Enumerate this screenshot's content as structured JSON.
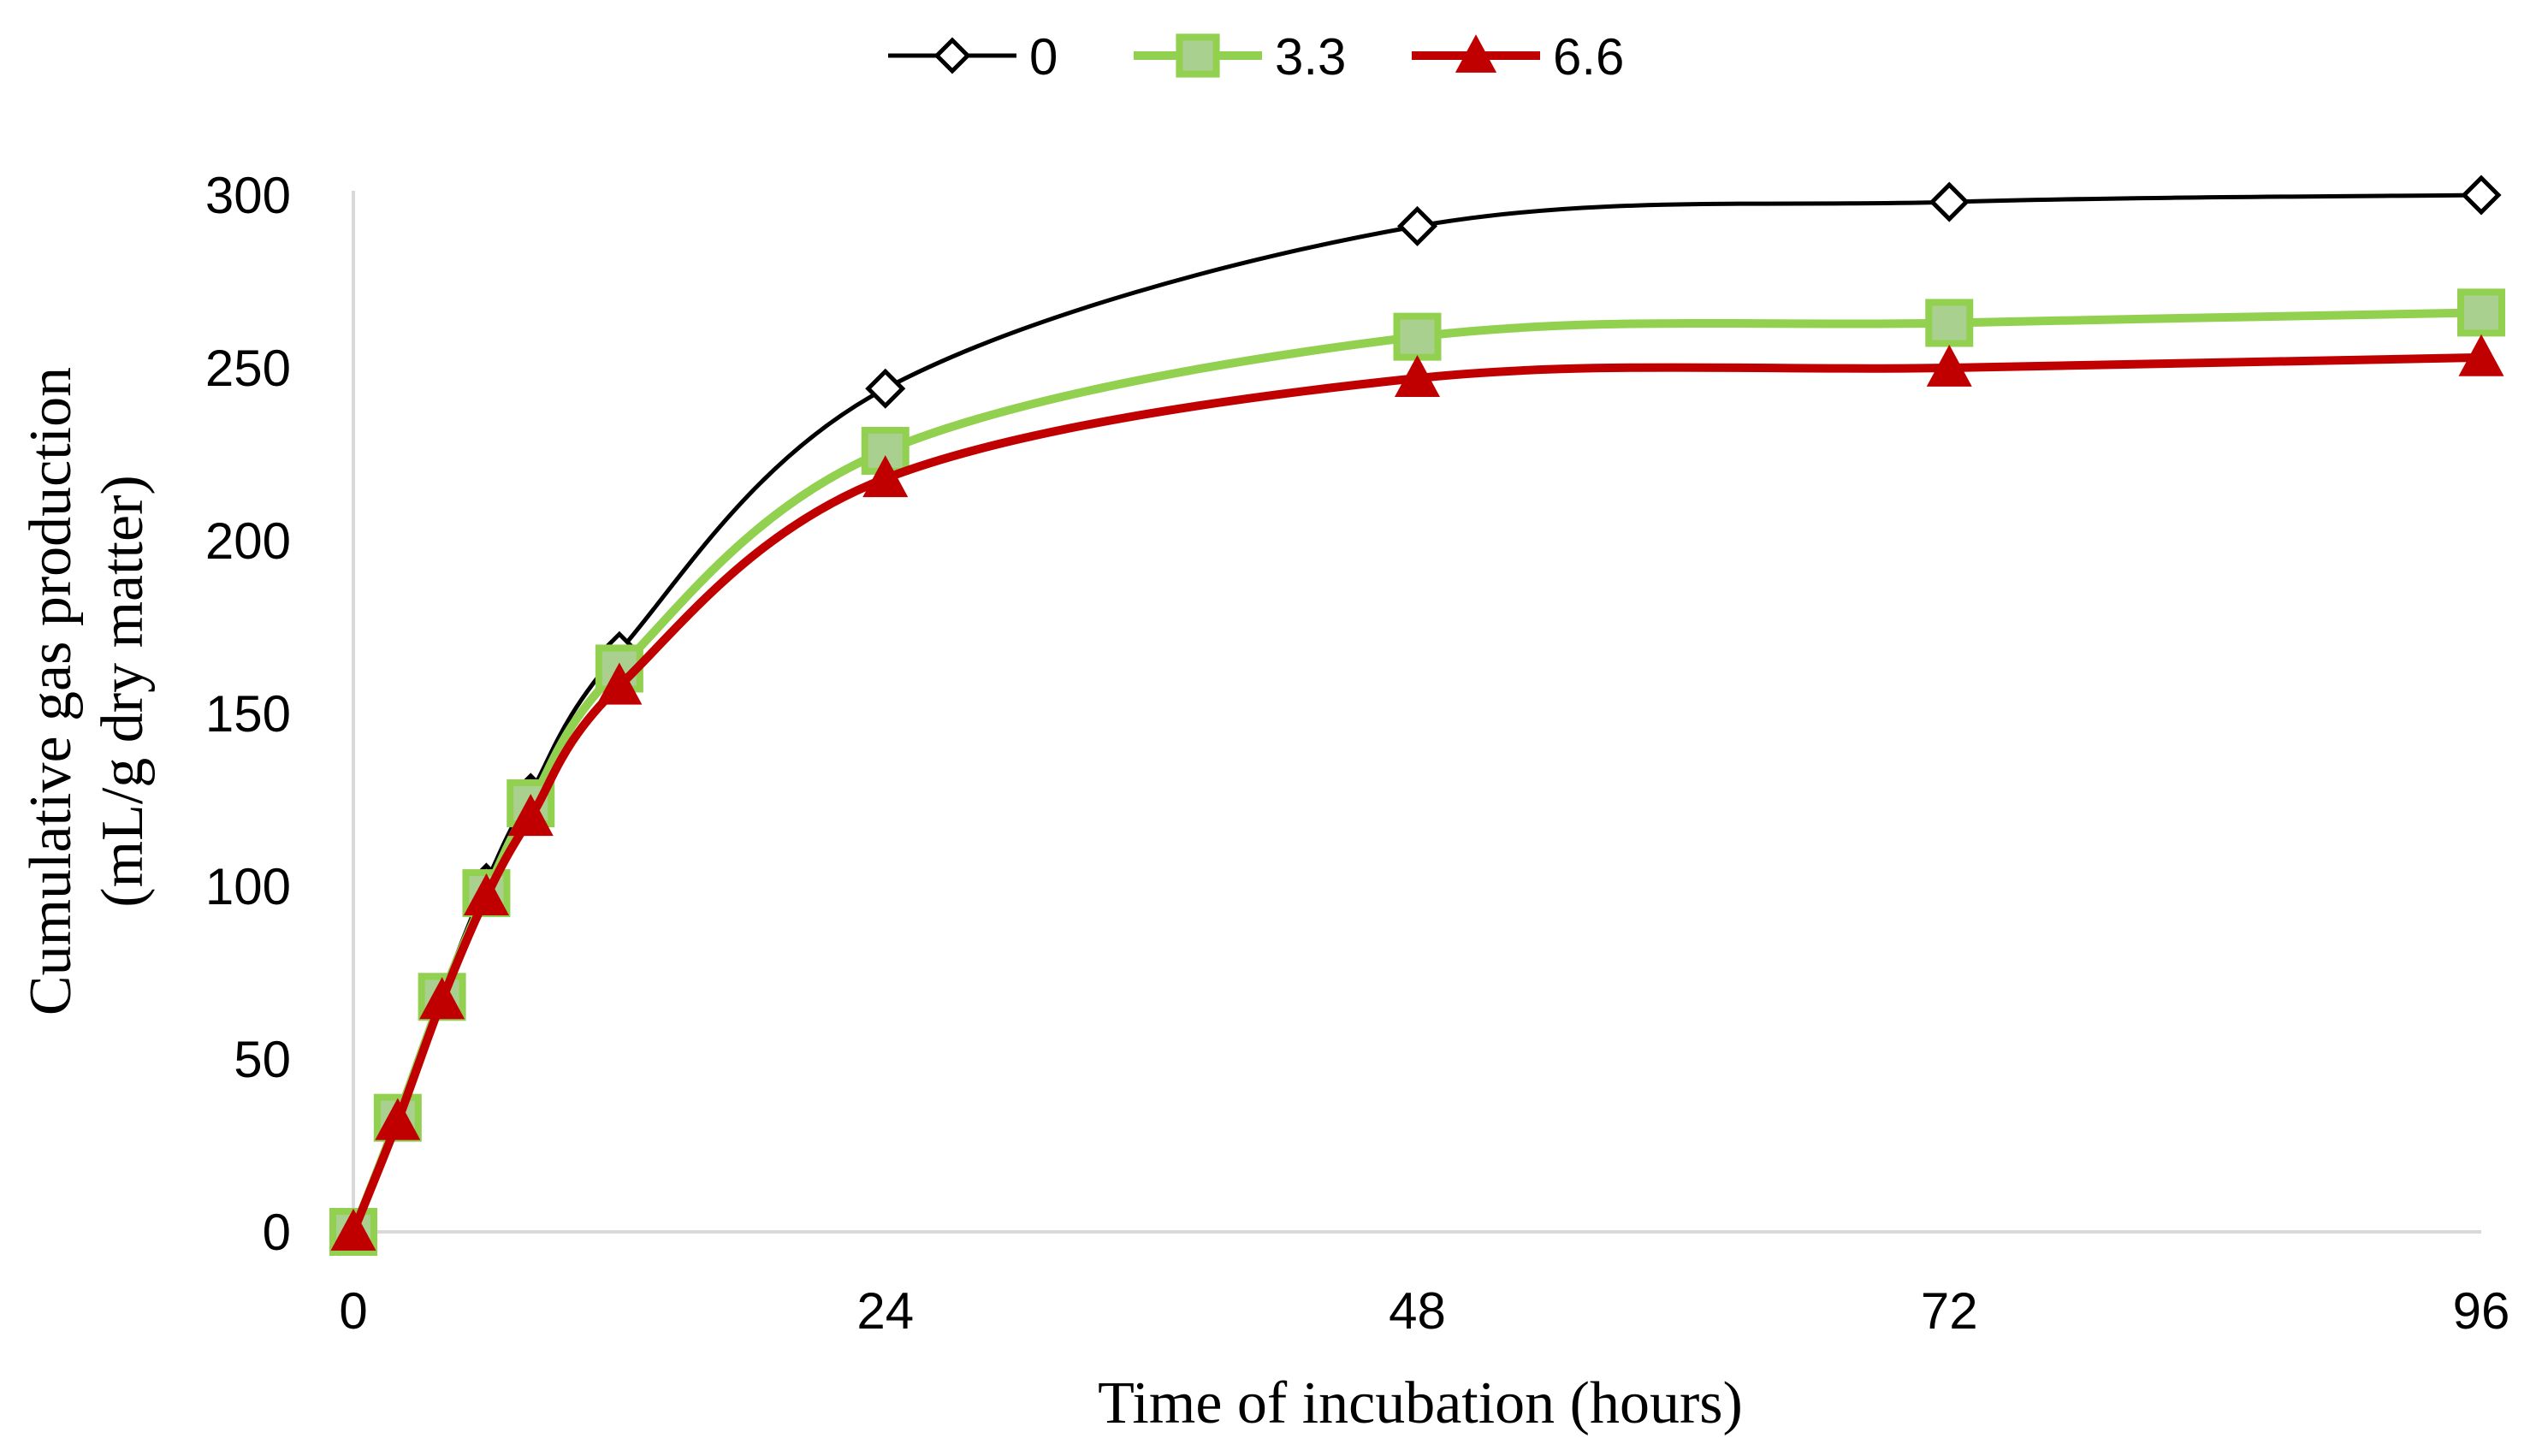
{
  "chart_data": {
    "type": "line",
    "title": "",
    "xlabel": "Time of incubation (hours)",
    "ylabel_line1": "Cumulative gas production",
    "ylabel_line2": "(mL/g dry matter)",
    "xlim": [
      0,
      96
    ],
    "ylim": [
      0,
      300
    ],
    "xticks": [
      0,
      24,
      48,
      72,
      96
    ],
    "yticks": [
      0,
      50,
      100,
      150,
      200,
      250,
      300
    ],
    "grid": false,
    "legend_position": "top-center",
    "series": [
      {
        "name": "0",
        "color": "#000000",
        "marker": "diamond-open",
        "x": [
          0,
          2,
          4,
          6,
          8,
          12,
          24,
          48,
          72,
          96
        ],
        "y": [
          0,
          34,
          69,
          101,
          127,
          168,
          244,
          291,
          298,
          300
        ]
      },
      {
        "name": "3.3",
        "color": "#92d050",
        "marker": "square",
        "x": [
          0,
          2,
          4,
          6,
          8,
          12,
          24,
          48,
          72,
          96
        ],
        "y": [
          0,
          33,
          68,
          98,
          124,
          163,
          226,
          259,
          263,
          266
        ]
      },
      {
        "name": "6.6",
        "color": "#c00000",
        "marker": "triangle",
        "x": [
          0,
          2,
          4,
          6,
          8,
          12,
          24,
          48,
          72,
          96
        ],
        "y": [
          0,
          32,
          67,
          97,
          120,
          158,
          218,
          247,
          250,
          253
        ]
      }
    ]
  }
}
